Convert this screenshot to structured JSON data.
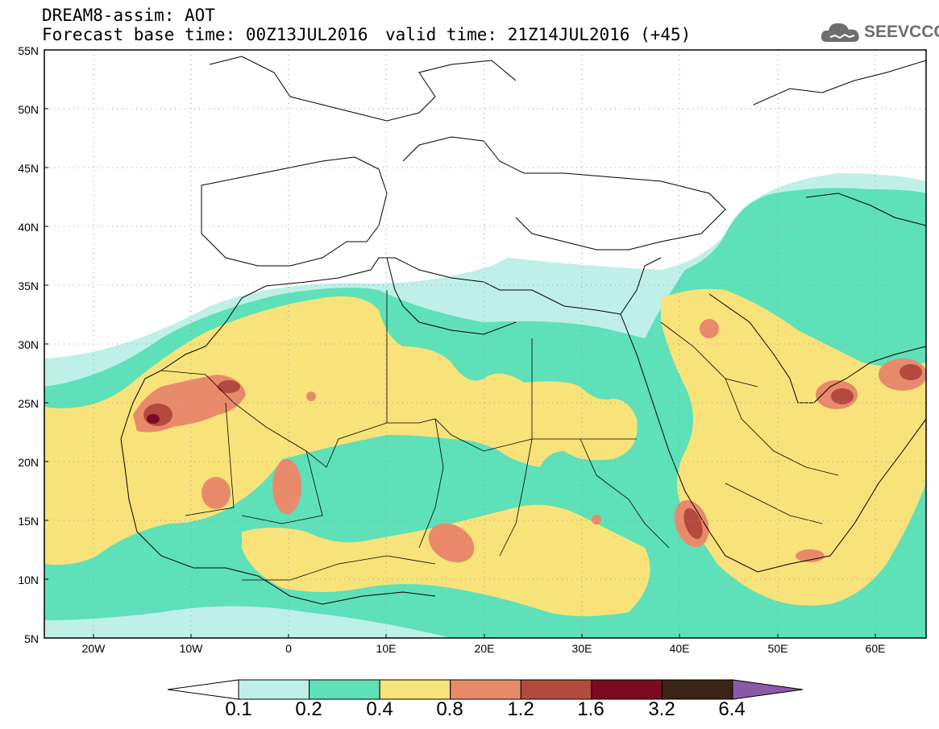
{
  "header": {
    "title": "DREAM8-assim: AOT",
    "base_time": "Forecast base time: 00Z13JUL2016",
    "valid_time": "valid time: 21Z14JUL2016 (+45)"
  },
  "logo": {
    "text": "SEEVCCC",
    "icon": "cloud-logo-icon"
  },
  "map": {
    "type": "filled-contour-map",
    "variable": "AOT",
    "lon_range": [
      -25,
      65
    ],
    "lat_range": [
      5,
      55
    ],
    "grid": "dotted",
    "lat_labels": [
      "55N",
      "50N",
      "45N",
      "40N",
      "35N",
      "30N",
      "25N",
      "20N",
      "15N",
      "10N",
      "5N"
    ],
    "lon_labels": [
      "20W",
      "10W",
      "0",
      "10E",
      "20E",
      "30E",
      "40E",
      "50E",
      "60E"
    ]
  },
  "colorbar": {
    "levels": [
      "0.1",
      "0.2",
      "0.4",
      "0.8",
      "1.2",
      "1.6",
      "3.2",
      "6.4"
    ],
    "colors": [
      "#bff0e8",
      "#5ee0b8",
      "#f8e27a",
      "#e88a6a",
      "#b44a3e",
      "#7c0a22",
      "#3a2416",
      "#8a5aa8"
    ],
    "under_color": "#ffffff",
    "over_color": "#8a5aa8"
  }
}
